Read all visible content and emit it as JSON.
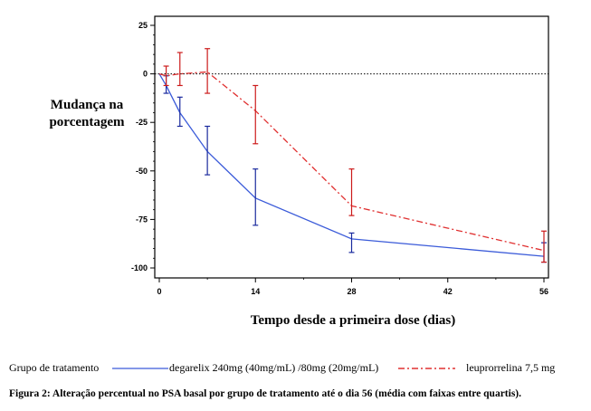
{
  "chart_data": {
    "type": "line",
    "ylabel_lines": [
      "Mudança na",
      "porcentagem"
    ],
    "xlabel": "Tempo desde a primeira dose (dias)",
    "xlim": [
      0,
      56
    ],
    "ylim": [
      -105,
      25
    ],
    "x_ticks": [
      0,
      14,
      28,
      42,
      56
    ],
    "y_ticks": [
      25,
      0,
      -25,
      -50,
      -75,
      -100
    ],
    "reference_line": 0,
    "series": [
      {
        "name": "degarelix 240mg (40mg/mL) /80mg (20mg/mL)",
        "color": "#3b5bd9",
        "errorbar_color": "#1a2a9e",
        "style": "solid",
        "points": [
          {
            "x": 0,
            "y": 0
          },
          {
            "x": 1,
            "y": -6,
            "lo": -10,
            "hi": -1
          },
          {
            "x": 3,
            "y": -20,
            "lo": -27,
            "hi": -12
          },
          {
            "x": 7,
            "y": -40,
            "lo": -52,
            "hi": -27
          },
          {
            "x": 14,
            "y": -64,
            "lo": -78,
            "hi": -49
          },
          {
            "x": 28,
            "y": -85,
            "lo": -92,
            "hi": -82
          },
          {
            "x": 56,
            "y": -94,
            "lo": -97,
            "hi": -87
          }
        ]
      },
      {
        "name": "leuprorrelina 7,5 mg",
        "color": "#e03030",
        "errorbar_color": "#cc1a1a",
        "style": "dashdot",
        "points": [
          {
            "x": 0,
            "y": 0
          },
          {
            "x": 1,
            "y": -1,
            "lo": -6,
            "hi": 4
          },
          {
            "x": 3,
            "y": 0,
            "lo": -6,
            "hi": 11
          },
          {
            "x": 7,
            "y": 1,
            "lo": -10,
            "hi": 13
          },
          {
            "x": 14,
            "y": -19,
            "lo": -36,
            "hi": -6
          },
          {
            "x": 28,
            "y": -68,
            "lo": -73,
            "hi": -49
          },
          {
            "x": 56,
            "y": -91,
            "lo": -97,
            "hi": -81
          }
        ]
      }
    ]
  },
  "legend": {
    "title": "Grupo de tratamento",
    "items": [
      "degarelix 240mg (40mg/mL) /80mg (20mg/mL)",
      "leuprorrelina 7,5 mg"
    ]
  },
  "caption": "Figura 2: Alteração percentual no PSA basal por grupo de tratamento até o dia 56 (média com faixas entre quartis)."
}
